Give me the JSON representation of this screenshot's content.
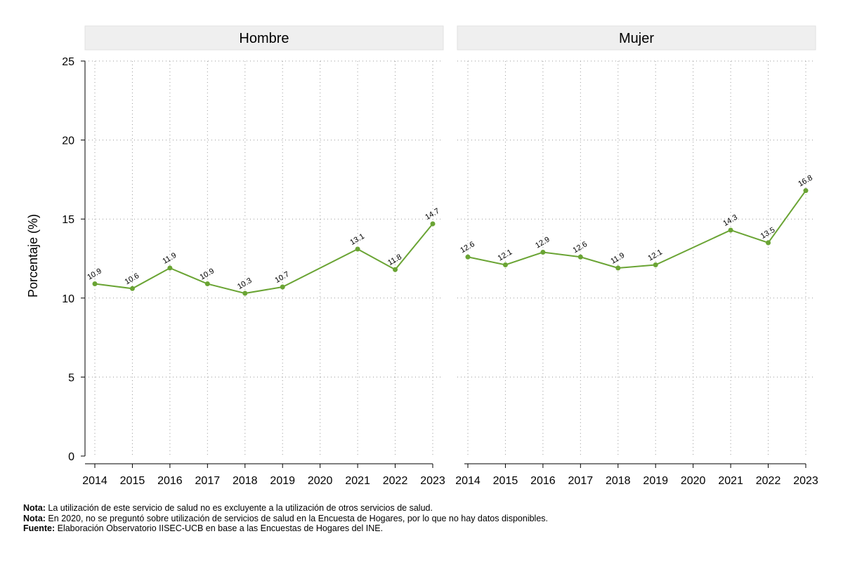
{
  "chart_data": {
    "type": "line",
    "ylabel": "Porcentaje (%)",
    "ylim": [
      0,
      25
    ],
    "yticks": [
      0,
      5,
      10,
      15,
      20,
      25
    ],
    "categories": [
      "2014",
      "2015",
      "2016",
      "2017",
      "2018",
      "2019",
      "2020",
      "2021",
      "2022",
      "2023"
    ],
    "grid": true,
    "line_color": "#6aa434",
    "panels": [
      {
        "title": "Hombre",
        "points": [
          {
            "x": "2014",
            "y": 10.9,
            "label": "10.9"
          },
          {
            "x": "2015",
            "y": 10.6,
            "label": "10.6"
          },
          {
            "x": "2016",
            "y": 11.9,
            "label": "11.9"
          },
          {
            "x": "2017",
            "y": 10.9,
            "label": "10.9"
          },
          {
            "x": "2018",
            "y": 10.3,
            "label": "10.3"
          },
          {
            "x": "2019",
            "y": 10.7,
            "label": "10.7"
          },
          {
            "x": "2021",
            "y": 13.1,
            "label": "13.1"
          },
          {
            "x": "2022",
            "y": 11.8,
            "label": "11.8"
          },
          {
            "x": "2023",
            "y": 14.7,
            "label": "14.7"
          }
        ]
      },
      {
        "title": "Mujer",
        "points": [
          {
            "x": "2014",
            "y": 12.6,
            "label": "12.6"
          },
          {
            "x": "2015",
            "y": 12.1,
            "label": "12.1"
          },
          {
            "x": "2016",
            "y": 12.9,
            "label": "12.9"
          },
          {
            "x": "2017",
            "y": 12.6,
            "label": "12.6"
          },
          {
            "x": "2018",
            "y": 11.9,
            "label": "11.9"
          },
          {
            "x": "2019",
            "y": 12.1,
            "label": "12.1"
          },
          {
            "x": "2021",
            "y": 14.3,
            "label": "14.3"
          },
          {
            "x": "2022",
            "y": 13.5,
            "label": "13.5"
          },
          {
            "x": "2023",
            "y": 16.8,
            "label": "16.8"
          }
        ]
      }
    ]
  },
  "notes": [
    {
      "label": "Nota:",
      "text": " La utilización de este servicio de salud no es excluyente a la utilización de otros servicios de salud."
    },
    {
      "label": "Nota:",
      "text": " En 2020, no se preguntó sobre utilización de servicios de salud en la Encuesta de Hogares, por lo que no hay datos disponibles."
    },
    {
      "label": "Fuente:",
      "text": " Elaboración Observatorio IISEC-UCB en base a las Encuestas de Hogares del INE."
    }
  ]
}
